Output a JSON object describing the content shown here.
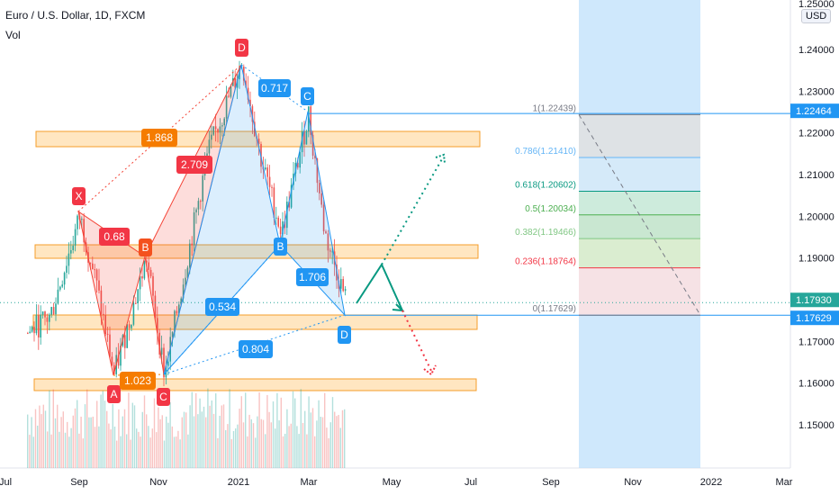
{
  "header": {
    "symbol": "Euro / U.S. Dollar, 1D, FXCM",
    "volume_label": "Vol"
  },
  "currency_badge": "USD",
  "chart_data": {
    "type": "candlestick",
    "y_ticks": [
      "1.15000",
      "1.16000",
      "1.17000",
      "1.18000",
      "1.19000",
      "1.20000",
      "1.21000",
      "1.22000",
      "1.23000",
      "1.24000"
    ],
    "y_top_partial": "1.25000",
    "x_ticks": [
      "Jul",
      "Sep",
      "Nov",
      "2021",
      "Mar",
      "May",
      "Jul",
      "Sep",
      "Nov",
      "2022",
      "Mar"
    ],
    "price_badges": [
      {
        "value": "1.22464",
        "color": "#2196f3"
      },
      {
        "value": "1.17930",
        "color": "#26a69a"
      },
      {
        "value": "1.17629",
        "color": "#2196f3"
      }
    ],
    "fib_levels": [
      {
        "text": "1(1.22439)",
        "price": 1.22439,
        "color": "#787b86"
      },
      {
        "text": "0.786(1.21410)",
        "price": 1.2141,
        "color": "#64b5f6"
      },
      {
        "text": "0.618(1.20602)",
        "price": 1.20602,
        "color": "#089981"
      },
      {
        "text": "0.5(1.20034)",
        "price": 1.20034,
        "color": "#4caf50"
      },
      {
        "text": "0.382(1.19466)",
        "price": 1.19466,
        "color": "#81c784"
      },
      {
        "text": "0.236(1.18764)",
        "price": 1.18764,
        "color": "#f23645"
      },
      {
        "text": "0(1.17629)",
        "price": 1.17629,
        "color": "#787b86"
      }
    ],
    "pattern_points": [
      {
        "label": "X",
        "color": "#f23645"
      },
      {
        "label": "A",
        "color": "#f23645"
      },
      {
        "label": "B",
        "color": "#f4511e"
      },
      {
        "label": "C",
        "color": "#f23645"
      },
      {
        "label": "D",
        "color": "#f23645"
      },
      {
        "label": "B",
        "color": "#2196f3"
      },
      {
        "label": "C",
        "color": "#2196f3"
      },
      {
        "label": "D",
        "color": "#2196f3"
      }
    ],
    "ratios": [
      {
        "text": "0.68",
        "color": "#f23645"
      },
      {
        "text": "1.023",
        "color": "#f57c00"
      },
      {
        "text": "1.868",
        "color": "#f57c00"
      },
      {
        "text": "2.709",
        "color": "#f23645"
      },
      {
        "text": "0.717",
        "color": "#2196f3"
      },
      {
        "text": "0.534",
        "color": "#2196f3"
      },
      {
        "text": "1.706",
        "color": "#2196f3"
      },
      {
        "text": "0.804",
        "color": "#2196f3"
      }
    ],
    "colors": {
      "up": "#26a69a",
      "down": "#ef5350",
      "zone": "#ffe0b2",
      "zone_border": "#f59d2a"
    }
  }
}
